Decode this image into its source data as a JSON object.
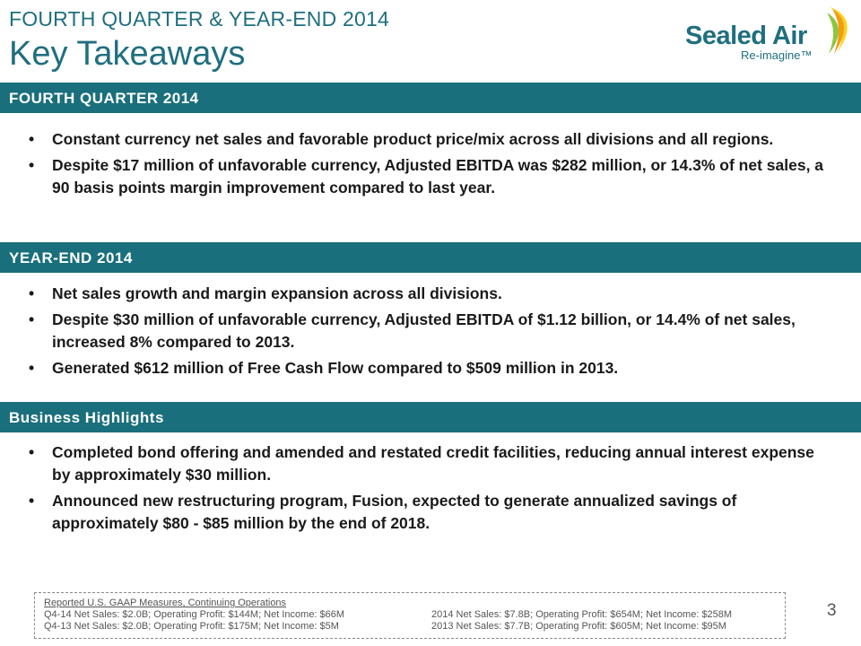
{
  "header": {
    "subtitle": "FOURTH QUARTER & YEAR-END 2014",
    "title": "Key Takeaways"
  },
  "logo": {
    "name": "Sealed Air",
    "tagline": "Re-imagine™",
    "colors": {
      "teal": "#1f6f7f",
      "green": "#8cc63f",
      "orange": "#f39c12",
      "yellow": "#f7d51d"
    }
  },
  "sections": [
    {
      "heading": "FOURTH QUARTER 2014",
      "bullets": [
        "Constant currency net sales and favorable product price/mix across all divisions and all regions.",
        "Despite $17 million of unfavorable currency, Adjusted EBITDA was $282 million, or 14.3% of net sales, a 90 basis points margin improvement compared to last year."
      ]
    },
    {
      "heading": "YEAR-END 2014",
      "bullets": [
        "Net sales growth and margin expansion across all divisions.",
        "Despite $30 million of unfavorable currency, Adjusted EBITDA of $1.12 billion, or 14.4% of net sales, increased 8% compared to 2013.",
        "Generated $612 million of Free Cash Flow compared to $509 million in 2013."
      ]
    },
    {
      "heading": "Business Highlights",
      "bullets": [
        "Completed bond offering and amended and restated credit facilities, reducing annual interest expense by approximately $30 million.",
        "Announced new restructuring program, Fusion, expected to generate annualized savings of approximately $80 - $85 million by the end of 2018."
      ]
    }
  ],
  "bullet_glyph": "•",
  "footnote": {
    "heading": "Reported U.S. GAAP Measures, Continuing Operations",
    "rows": [
      {
        "left": "Q4-14 Net Sales: $2.0B; Operating Profit: $144M; Net Income: $66M",
        "right": "2014 Net Sales: $7.8B; Operating Profit: $654M; Net Income: $258M"
      },
      {
        "left": "Q4-13 Net Sales: $2.0B; Operating Profit: $175M; Net Income: $5M",
        "right": "2013 Net Sales: $7.7B; Operating Profit: $605M; Net Income: $95M"
      }
    ]
  },
  "page_number": "3",
  "theme": {
    "band_color": "#1a6f7c",
    "title_color": "#1f6f7f"
  }
}
